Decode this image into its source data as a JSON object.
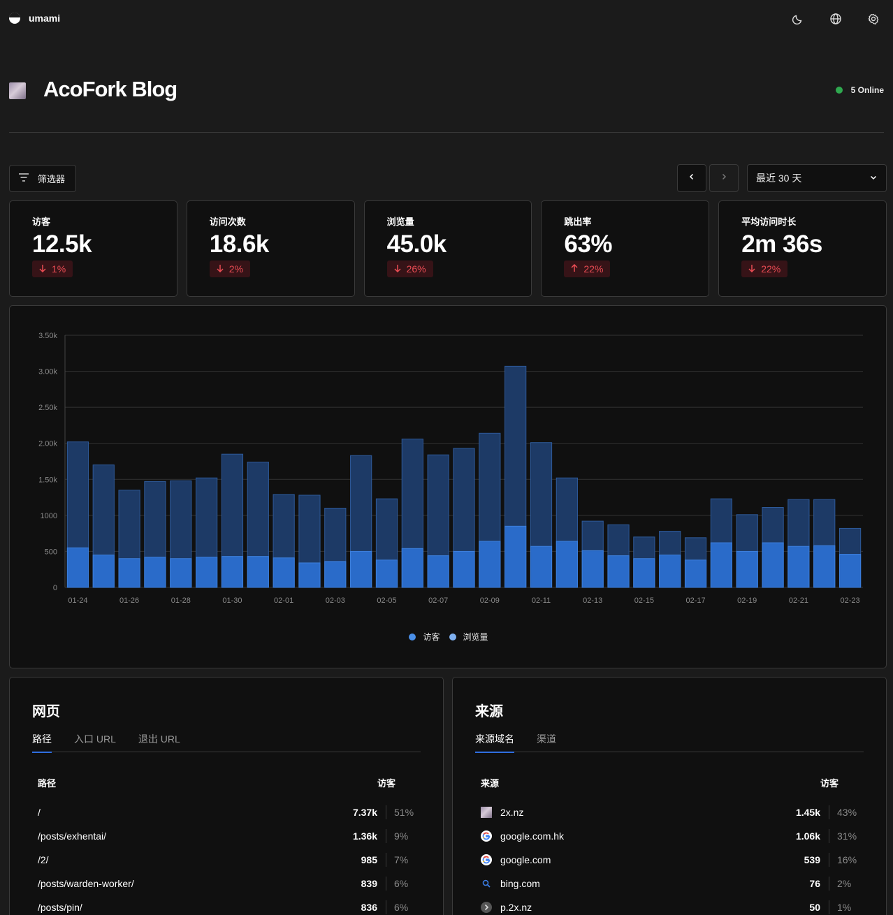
{
  "app": {
    "name": "umami"
  },
  "site": {
    "name": "AcoFork Blog",
    "online": "5 Online"
  },
  "toolbar": {
    "filter_label": "筛选器",
    "date_range": "最近 30 天"
  },
  "metrics": [
    {
      "label": "访客",
      "value": "12.5k",
      "change": "1%",
      "direction": "down"
    },
    {
      "label": "访问次数",
      "value": "18.6k",
      "change": "2%",
      "direction": "down"
    },
    {
      "label": "浏览量",
      "value": "45.0k",
      "change": "26%",
      "direction": "down"
    },
    {
      "label": "跳出率",
      "value": "63%",
      "change": "22%",
      "direction": "up"
    },
    {
      "label": "平均访问时长",
      "value": "2m 36s",
      "change": "22%",
      "direction": "down"
    }
  ],
  "colors": {
    "visitors": "#2a6bc9",
    "pageviews": "#1d3a66",
    "negative": "#ea4c54",
    "online": "#2fa84f"
  },
  "chart_data": {
    "type": "bar",
    "categories": [
      "01-24",
      "01-25",
      "01-26",
      "01-27",
      "01-28",
      "01-29",
      "01-30",
      "01-31",
      "02-01",
      "02-02",
      "02-03",
      "02-04",
      "02-05",
      "02-06",
      "02-07",
      "02-08",
      "02-09",
      "02-10",
      "02-11",
      "02-12",
      "02-13",
      "02-14",
      "02-15",
      "02-16",
      "02-17",
      "02-18",
      "02-19",
      "02-20",
      "02-21",
      "02-22",
      "02-23"
    ],
    "xtick_labels": [
      "01-24",
      "01-26",
      "01-28",
      "01-30",
      "02-01",
      "02-03",
      "02-05",
      "02-07",
      "02-09",
      "02-11",
      "02-13",
      "02-15",
      "02-17",
      "02-19",
      "02-21",
      "02-23"
    ],
    "yticks": [
      0,
      500,
      1000,
      1500,
      2000,
      2500,
      3000,
      3500
    ],
    "ytick_labels": [
      "0",
      "500",
      "1000",
      "1.50k",
      "2.00k",
      "2.50k",
      "3.00k",
      "3.50k"
    ],
    "ylim": [
      0,
      3500
    ],
    "series": [
      {
        "name": "访客",
        "values": [
          550,
          450,
          400,
          420,
          400,
          420,
          430,
          430,
          410,
          340,
          360,
          500,
          380,
          540,
          440,
          500,
          640,
          850,
          570,
          640,
          510,
          440,
          400,
          450,
          380,
          620,
          500,
          620,
          570,
          580,
          460
        ]
      },
      {
        "name": "浏览量",
        "values": [
          2020,
          1700,
          1350,
          1470,
          1480,
          1520,
          1850,
          1740,
          1290,
          1280,
          1100,
          1830,
          1230,
          2060,
          1840,
          1930,
          2140,
          3070,
          2010,
          1520,
          920,
          870,
          700,
          780,
          690,
          1230,
          1010,
          1110,
          1220,
          1220,
          820
        ]
      }
    ],
    "grid": true,
    "legend": "bottom"
  },
  "pages": {
    "title": "网页",
    "tabs": [
      "路径",
      "入口 URL",
      "退出 URL"
    ],
    "col_label": "路径",
    "col_value": "访客",
    "rows": [
      {
        "label": "/",
        "value": "7.37k",
        "pct": "51%"
      },
      {
        "label": "/posts/exhentai/",
        "value": "1.36k",
        "pct": "9%"
      },
      {
        "label": "/2/",
        "value": "985",
        "pct": "7%"
      },
      {
        "label": "/posts/warden-worker/",
        "value": "839",
        "pct": "6%"
      },
      {
        "label": "/posts/pin/",
        "value": "836",
        "pct": "6%"
      }
    ]
  },
  "referrers": {
    "title": "来源",
    "tabs": [
      "来源域名",
      "渠道"
    ],
    "col_label": "来源",
    "col_value": "访客",
    "rows": [
      {
        "label": "2x.nz",
        "value": "1.45k",
        "pct": "43%",
        "icon": "site-favicon-icon"
      },
      {
        "label": "google.com.hk",
        "value": "1.06k",
        "pct": "31%",
        "icon": "google-icon"
      },
      {
        "label": "google.com",
        "value": "539",
        "pct": "16%",
        "icon": "google-icon"
      },
      {
        "label": "bing.com",
        "value": "76",
        "pct": "2%",
        "icon": "bing-icon"
      },
      {
        "label": "p.2x.nz",
        "value": "50",
        "pct": "1%",
        "icon": "link-icon"
      }
    ]
  }
}
